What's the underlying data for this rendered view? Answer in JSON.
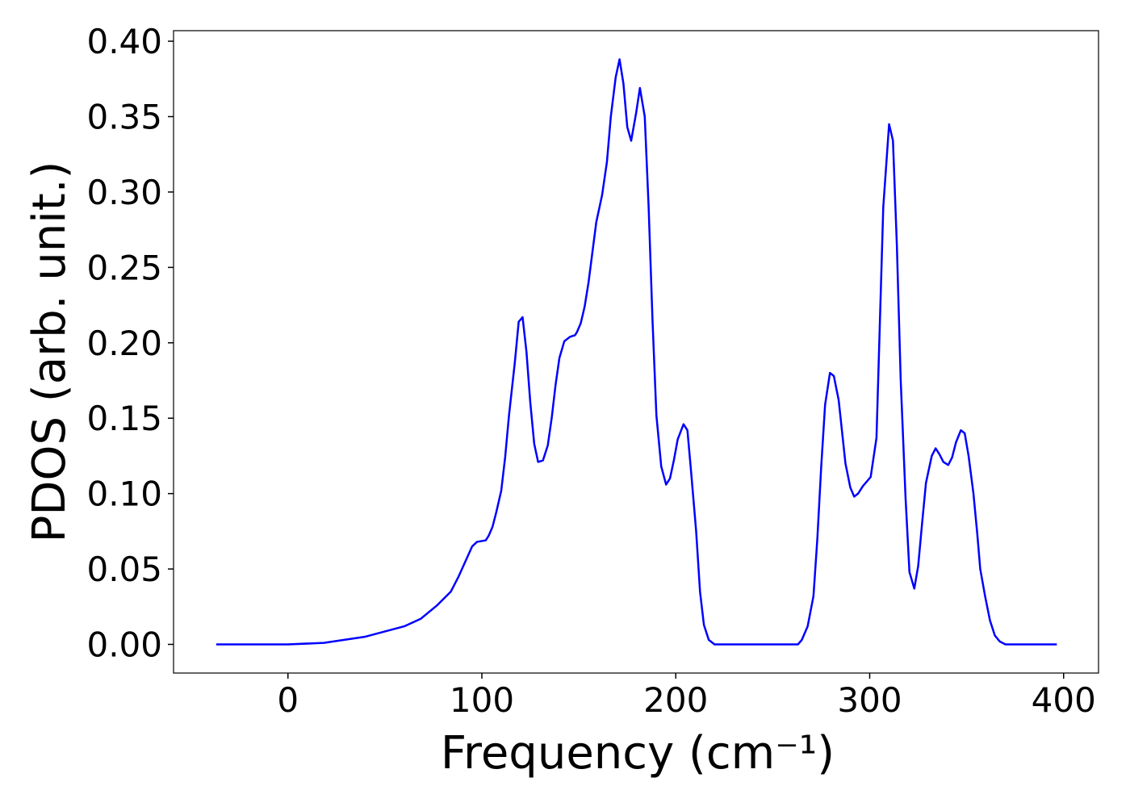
{
  "chart_data": {
    "type": "line",
    "xlabel": "Frequency (cm⁻¹)",
    "ylabel": "PDOS (arb. unit.)",
    "x": [
      -37,
      0,
      18.5,
      39.5,
      60,
      68.5,
      77,
      84,
      88,
      95,
      97.5,
      102,
      103.5,
      105.5,
      107.5,
      110,
      112,
      114,
      117,
      119,
      121,
      123,
      125,
      127,
      129,
      131.5,
      134,
      136,
      138,
      140,
      142.5,
      145.5,
      148,
      149,
      151,
      153,
      155,
      157,
      159,
      162,
      164.5,
      166.5,
      169,
      171,
      173,
      175,
      177,
      179.5,
      181.5,
      184,
      186,
      188,
      190,
      192.5,
      195,
      197,
      199,
      201,
      204,
      206,
      208,
      210.5,
      212.5,
      214.5,
      217,
      220,
      263,
      265,
      268,
      271,
      273,
      275,
      277,
      279.5,
      281.5,
      284,
      287.5,
      290,
      292,
      294,
      296.5,
      300.5,
      303.5,
      307,
      310,
      312,
      314,
      316,
      318.5,
      320.5,
      323,
      325,
      327,
      329,
      332,
      334,
      336,
      338,
      340.5,
      342.5,
      344.5,
      347,
      349,
      351,
      353.5,
      355.5,
      357,
      359.5,
      362,
      364.5,
      367,
      370,
      396.5
    ],
    "series": [
      {
        "color": "#0000ff",
        "values": [
          0,
          0,
          0.001,
          0.005,
          0.012,
          0.017,
          0.026,
          0.035,
          0.045,
          0.065,
          0.068,
          0.069,
          0.072,
          0.078,
          0.088,
          0.102,
          0.124,
          0.152,
          0.187,
          0.214,
          0.217,
          0.194,
          0.16,
          0.133,
          0.121,
          0.122,
          0.132,
          0.15,
          0.172,
          0.19,
          0.201,
          0.204,
          0.205,
          0.207,
          0.213,
          0.224,
          0.24,
          0.26,
          0.28,
          0.298,
          0.32,
          0.35,
          0.376,
          0.388,
          0.372,
          0.343,
          0.334,
          0.352,
          0.369,
          0.35,
          0.29,
          0.215,
          0.152,
          0.118,
          0.106,
          0.11,
          0.122,
          0.136,
          0.146,
          0.142,
          0.113,
          0.075,
          0.035,
          0.013,
          0.003,
          0,
          0,
          0.003,
          0.012,
          0.032,
          0.07,
          0.118,
          0.159,
          0.18,
          0.178,
          0.162,
          0.12,
          0.104,
          0.098,
          0.1,
          0.105,
          0.111,
          0.137,
          0.29,
          0.345,
          0.334,
          0.265,
          0.175,
          0.097,
          0.048,
          0.037,
          0.052,
          0.08,
          0.107,
          0.125,
          0.13,
          0.126,
          0.121,
          0.119,
          0.124,
          0.134,
          0.142,
          0.14,
          0.125,
          0.1,
          0.073,
          0.05,
          0.032,
          0.016,
          0.006,
          0.002,
          0,
          0
        ]
      }
    ],
    "xlim": [
      -59,
      418
    ],
    "ylim": [
      -0.019,
      0.407
    ],
    "xticks": [
      0,
      100,
      200,
      300,
      400
    ],
    "yticks": [
      {
        "value": 0,
        "label": "0.00"
      },
      0.05,
      {
        "value": 0.1,
        "label": "0.10"
      },
      0.15,
      {
        "value": 0.2,
        "label": "0.20"
      },
      0.25,
      {
        "value": 0.3,
        "label": "0.30"
      },
      0.35,
      {
        "value": 0.4,
        "label": "0.40"
      }
    ]
  }
}
